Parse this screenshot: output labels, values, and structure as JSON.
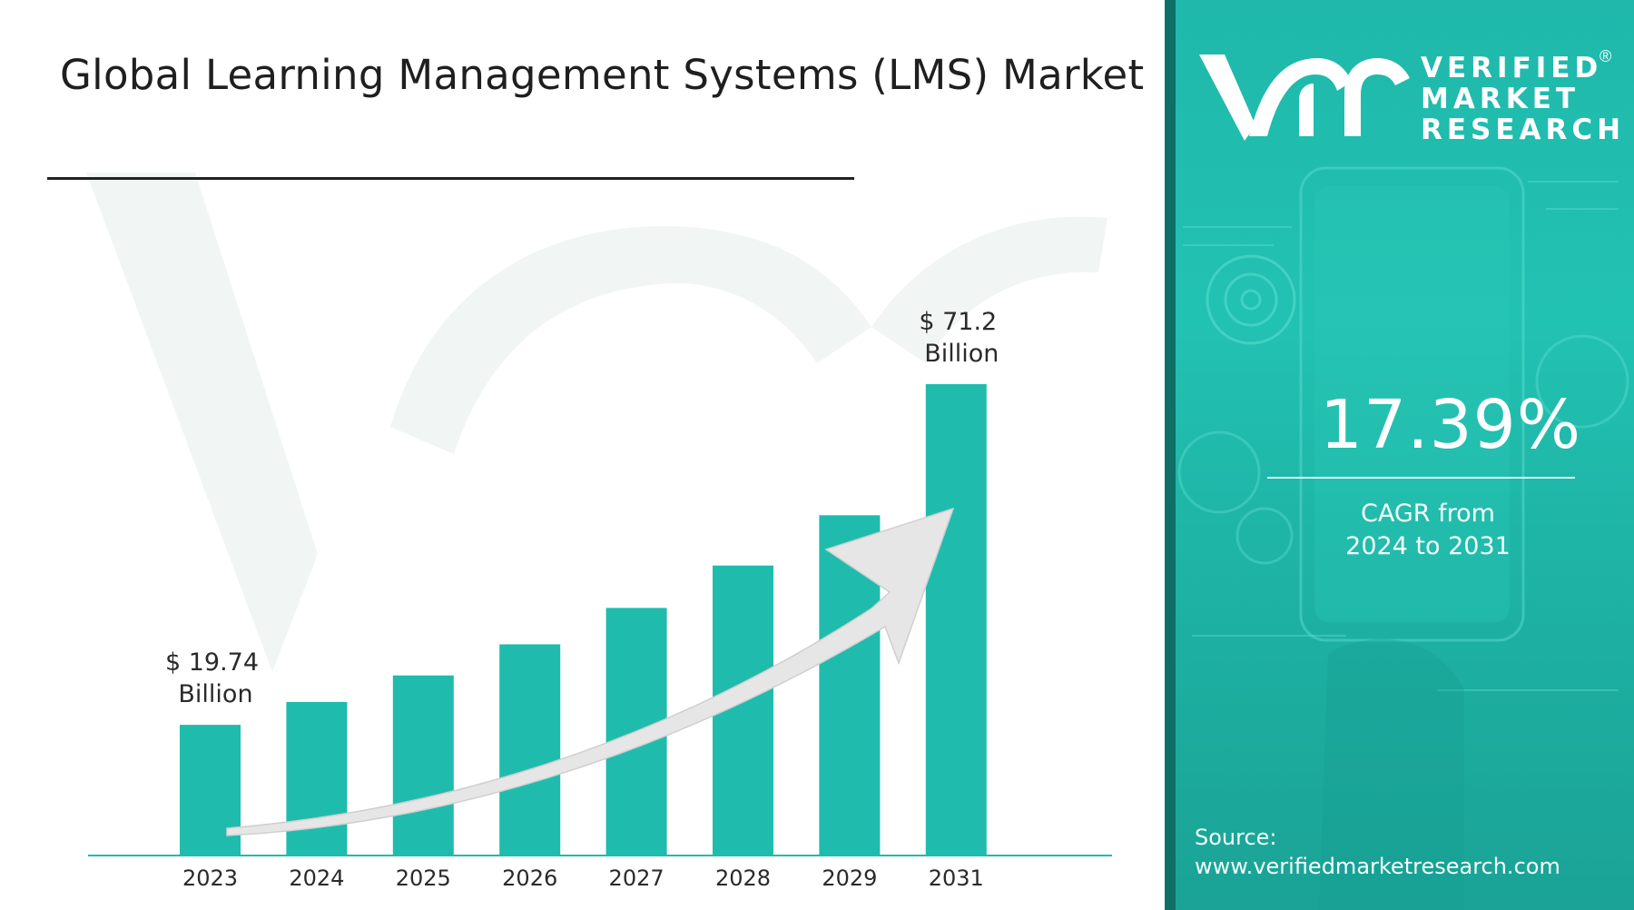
{
  "title": "Global Learning Management Systems (LMS) Market",
  "colors": {
    "bar": "#1fbcad",
    "panel": "#1fb8ab",
    "arrow": "#e6e6e6",
    "baseline": "#1fbcad"
  },
  "chart_data": {
    "type": "bar",
    "title": "Global Learning Management Systems (LMS) Market",
    "categories": [
      "2023",
      "2024",
      "2025",
      "2026",
      "2027",
      "2028",
      "2029",
      "2031"
    ],
    "values": [
      19.74,
      23.2,
      27.2,
      31.9,
      37.4,
      43.8,
      51.4,
      71.2
    ],
    "unit": "Billion",
    "ylim": [
      0,
      75
    ],
    "grid": false,
    "legend": "none",
    "annotations": [
      {
        "category": "2023",
        "line1": "$ 19.74",
        "line2": "Billion"
      },
      {
        "category": "2031",
        "line1": "$ 71.2",
        "line2": "Billion"
      }
    ],
    "trend_arrow": true
  },
  "panel": {
    "brand_lines": [
      "VERIFIED",
      "MARKET",
      "RESEARCH"
    ],
    "registered": "®",
    "logo_icon": "vmr-logo-icon",
    "cagr_value": "17.39%",
    "cagr_label_1": "CAGR from",
    "cagr_label_2": "2024 to 2031",
    "source_label": "Source:",
    "source_url": "www.verifiedmarketresearch.com"
  }
}
